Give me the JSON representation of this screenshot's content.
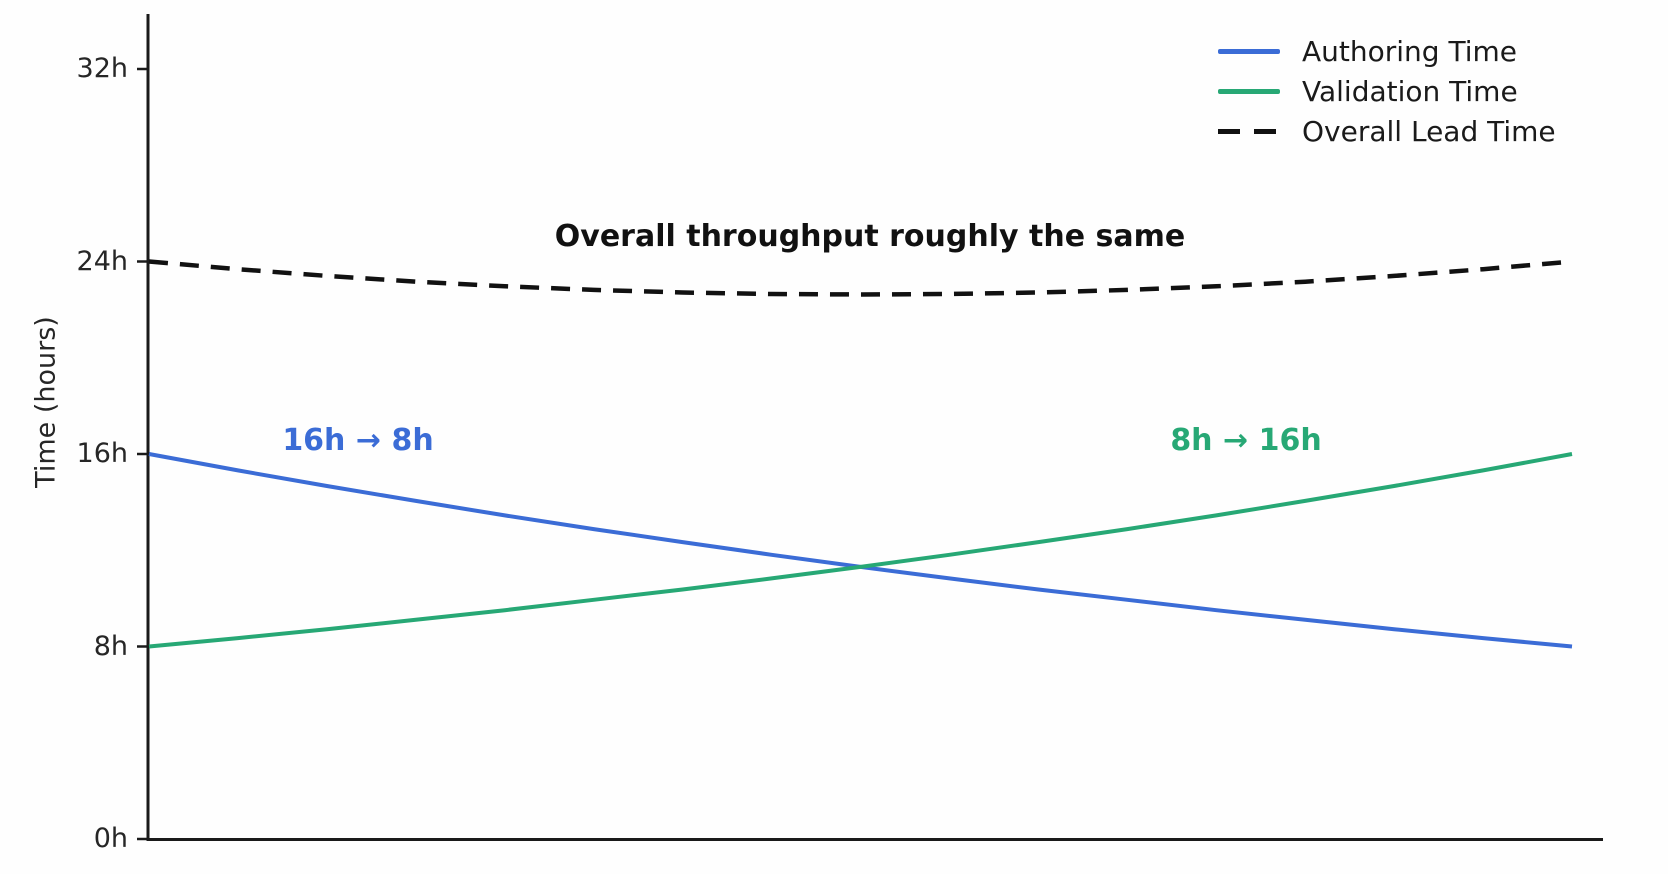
{
  "figure": {
    "background": "#fefefe",
    "axis_color": "#1a1a1a",
    "tick_label_color": "#262626"
  },
  "chart_data": {
    "type": "line",
    "title": "",
    "xlabel": "",
    "ylabel": "Time (hours)",
    "x_tick_labels": [],
    "x": [
      0,
      0.0625,
      0.125,
      0.1875,
      0.25,
      0.3125,
      0.375,
      0.4375,
      0.5,
      0.5625,
      0.625,
      0.6875,
      0.75,
      0.8125,
      0.875,
      0.9375,
      1
    ],
    "ylim": [
      0,
      34.3
    ],
    "yticks": [
      {
        "value": 0,
        "label": "0h"
      },
      {
        "value": 8,
        "label": "8h"
      },
      {
        "value": 16,
        "label": "16h"
      },
      {
        "value": 24,
        "label": "24h"
      },
      {
        "value": 32,
        "label": "32h"
      }
    ],
    "grid": false,
    "legend_position": "top-right",
    "series": [
      {
        "name": "Authoring Time",
        "color": "#3b6cd6",
        "style": "solid",
        "trend": "exponential halving 16h to 8h",
        "values": [
          16,
          15.32,
          14.67,
          14.05,
          13.45,
          12.88,
          12.34,
          11.81,
          11.31,
          10.83,
          10.37,
          9.94,
          9.51,
          9.11,
          8.72,
          8.35,
          8
        ]
      },
      {
        "name": "Validation Time",
        "color": "#27a875",
        "style": "solid",
        "trend": "exponential doubling 8h to 16h",
        "values": [
          8,
          8.35,
          8.72,
          9.11,
          9.51,
          9.94,
          10.37,
          10.83,
          11.31,
          11.81,
          12.34,
          12.88,
          13.45,
          14.05,
          14.67,
          15.32,
          16
        ]
      },
      {
        "name": "Overall Lead Time",
        "color": "#111111",
        "style": "dashed",
        "trend": "sum of authoring and validation, ~24h with slight mid dip",
        "values": [
          24,
          23.68,
          23.4,
          23.16,
          22.97,
          22.82,
          22.71,
          22.65,
          22.63,
          22.65,
          22.71,
          22.82,
          22.97,
          23.16,
          23.4,
          23.68,
          24
        ]
      }
    ],
    "annotations": [
      {
        "text": "Overall throughput roughly the same",
        "color": "#111111",
        "bold": true
      },
      {
        "text": "16h → 8h",
        "color": "#3b6cd6",
        "bold": true
      },
      {
        "text": "8h → 16h",
        "color": "#27a875",
        "bold": true
      }
    ]
  }
}
